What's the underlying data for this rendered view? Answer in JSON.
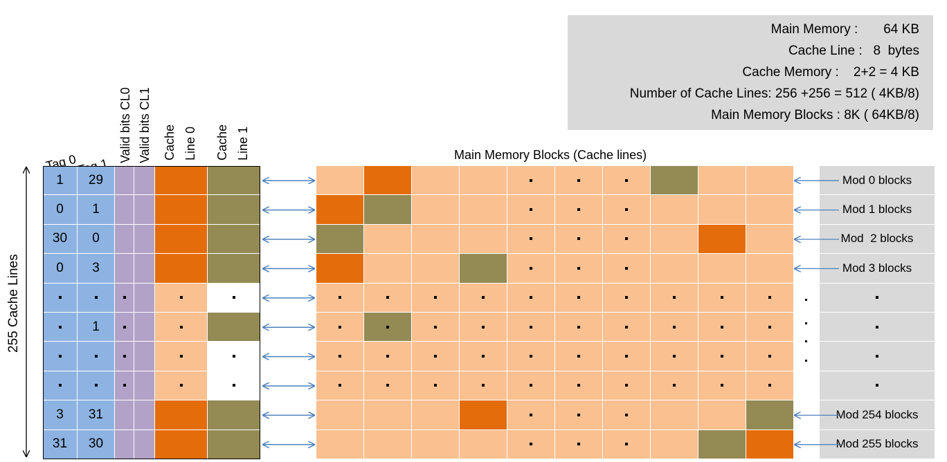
{
  "info": {
    "main_memory": "Main Memory :       64 KB",
    "cache_line": "Cache Line :   8  bytes",
    "cache_memory": "Cache Memory :    2+2 = 4 KB",
    "num_lines": "Number of Cache Lines: 256 +256 = 512 ( 4KB/8)",
    "mm_blocks": "Main Memory Blocks : 8K ( 64KB/8)"
  },
  "headers": {
    "tag0": "Tag 0",
    "tag1": "Tag 1",
    "valid0": "Valid bits CL0",
    "valid1": "Valid bits CL1",
    "cl0_a": "Cache",
    "cl0_b": "Line 0",
    "cl1_a": "Cache",
    "cl1_b": "Line 1",
    "mm_title": "Main Memory Blocks (Cache lines)",
    "side_label": "255 Cache Lines"
  },
  "colors": {
    "tag": "#8db3e2",
    "valid": "#b2a2c7",
    "orange": "#e46c0a",
    "olive": "#948a54",
    "light": "#fac090",
    "white": "#ffffff",
    "mod": "#d9d9d9",
    "arrow": "#4f81bd"
  },
  "cache_rows": [
    {
      "tag0": "1",
      "tag1": "29",
      "v": "",
      "cl0": "orange",
      "cl1": "olive"
    },
    {
      "tag0": "0",
      "tag1": "1",
      "v": "",
      "cl0": "orange",
      "cl1": "olive"
    },
    {
      "tag0": "30",
      "tag1": "0",
      "v": "",
      "cl0": "orange",
      "cl1": "olive"
    },
    {
      "tag0": "0",
      "tag1": "3",
      "v": "",
      "cl0": "orange",
      "cl1": "olive"
    },
    {
      "tag0": "dot",
      "tag1": "dot",
      "v": "dot",
      "cl0": "light-dot",
      "cl1": "white-dot"
    },
    {
      "tag0": "dot",
      "tag1": "1",
      "v": "dot",
      "cl0": "light-dot",
      "cl1": "olive"
    },
    {
      "tag0": "dot",
      "tag1": "dot",
      "v": "dot",
      "cl0": "light-dot",
      "cl1": "white-dot"
    },
    {
      "tag0": "dot",
      "tag1": "dot",
      "v": "dot",
      "cl0": "light-dot",
      "cl1": "white-dot"
    },
    {
      "tag0": "3",
      "tag1": "31",
      "v": "",
      "cl0": "orange",
      "cl1": "olive"
    },
    {
      "tag0": "31",
      "tag1": "30",
      "v": "",
      "cl0": "orange",
      "cl1": "olive"
    }
  ],
  "mm_rows": [
    [
      "L",
      "O",
      "L",
      "L",
      "Ld",
      "Ld",
      "Ld",
      "G",
      "L",
      "L"
    ],
    [
      "O",
      "G",
      "L",
      "L",
      "Ld",
      "Ld",
      "Ld",
      "L",
      "L",
      "L"
    ],
    [
      "G",
      "L",
      "L",
      "L",
      "Ld",
      "Ld",
      "Ld",
      "L",
      "O",
      "L"
    ],
    [
      "O",
      "L",
      "L",
      "G",
      "Ld",
      "Ld",
      "Ld",
      "L",
      "L",
      "L"
    ],
    [
      "Ld",
      "Ld",
      "Ld",
      "Ld",
      "Ld",
      "Ld",
      "Ld",
      "Ld",
      "Ld",
      "Ld"
    ],
    [
      "Ld",
      "Gd",
      "Ld",
      "Ld",
      "Ld",
      "Ld",
      "Ld",
      "Ld",
      "Ld",
      "Ld"
    ],
    [
      "Ld",
      "Ld",
      "Ld",
      "Ld",
      "Ld",
      "Ld",
      "Ld",
      "Ld",
      "Ld",
      "Ld"
    ],
    [
      "Ld",
      "Ld",
      "Ld",
      "Ld",
      "Ld",
      "Ld",
      "Ld",
      "Ld",
      "Ld",
      "Ld"
    ],
    [
      "L",
      "L",
      "L",
      "O",
      "Ld",
      "Ld",
      "Ld",
      "L",
      "L",
      "G"
    ],
    [
      "L",
      "L",
      "L",
      "L",
      "Ld",
      "Ld",
      "Ld",
      "L",
      "G",
      "O"
    ]
  ],
  "mod_labels": [
    "Mod 0 blocks",
    "Mod 1 blocks",
    "Mod  2 blocks",
    "Mod 3 blocks",
    "dot",
    "dot",
    "dot",
    "dot",
    "Mod 254 blocks",
    "Mod 255 blocks"
  ]
}
